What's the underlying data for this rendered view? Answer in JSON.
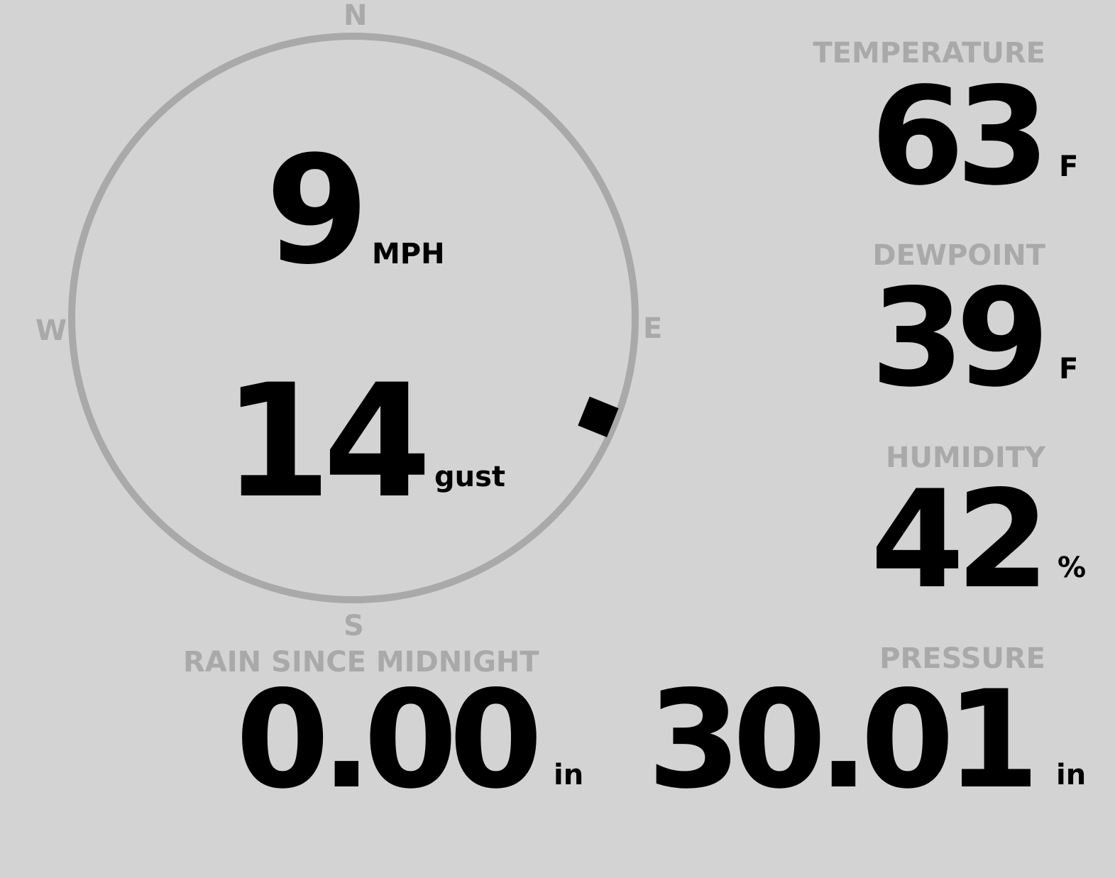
{
  "compass": {
    "north": "N",
    "south": "S",
    "east": "E",
    "west": "W",
    "wind_direction_degrees": 112,
    "ring_color": "#a9a9a9",
    "marker_color": "#000000"
  },
  "wind": {
    "speed": "9",
    "speed_unit": "MPH",
    "gust": "14",
    "gust_unit": "gust"
  },
  "temperature": {
    "label": "TEMPERATURE",
    "value": "63",
    "unit": "F"
  },
  "dewpoint": {
    "label": "DEWPOINT",
    "value": "39",
    "unit": "F"
  },
  "humidity": {
    "label": "HUMIDITY",
    "value": "42",
    "unit": "%"
  },
  "rain": {
    "label": "RAIN SINCE MIDNIGHT",
    "value": "0.00",
    "unit": "in"
  },
  "pressure": {
    "label": "PRESSURE",
    "value": "30.01",
    "unit": "in"
  },
  "colors": {
    "background": "#d3d3d3",
    "label": "#a9a9a9",
    "value": "#000000"
  }
}
